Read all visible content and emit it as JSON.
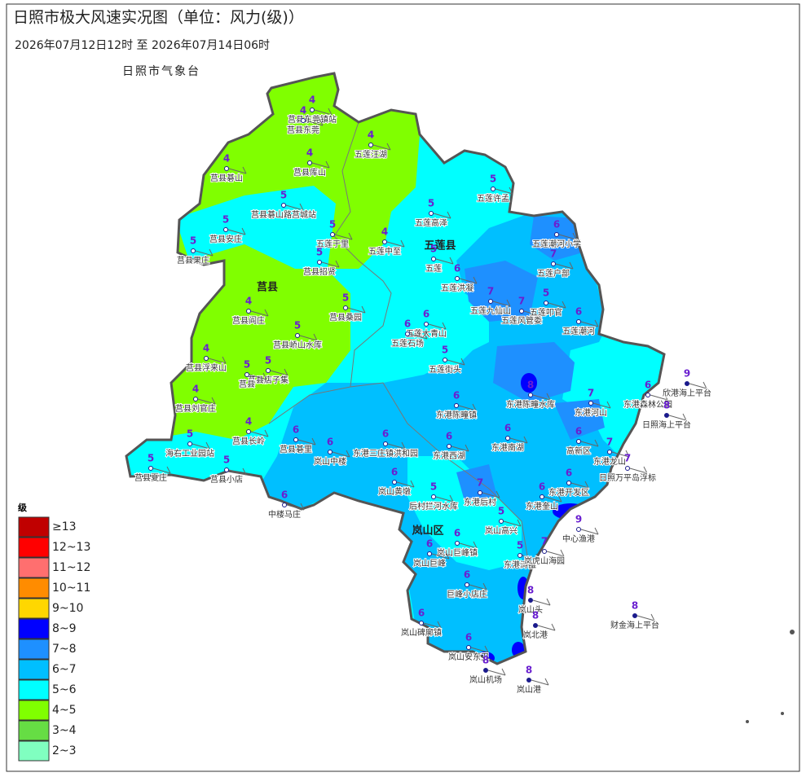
{
  "header": {
    "title": "日照市极大风速实况图（单位：风力(级)）",
    "subtitle": "2026年07月12日12时  至  2026年07月14日06时",
    "agency": "日照市气象台"
  },
  "districts": [
    "莒县",
    "五莲县",
    "岚山区"
  ],
  "legend": {
    "title": "级",
    "items": [
      {
        "label": "≥13",
        "color": "#c00000"
      },
      {
        "label": "12~13",
        "color": "#ff0000"
      },
      {
        "label": "11~12",
        "color": "#ff6f6f"
      },
      {
        "label": "10~11",
        "color": "#ff8c00"
      },
      {
        "label": "9~10",
        "color": "#ffd700"
      },
      {
        "label": "8~9",
        "color": "#0000ff"
      },
      {
        "label": "7~8",
        "color": "#1e90ff"
      },
      {
        "label": "6~7",
        "color": "#00bfff"
      },
      {
        "label": "5~6",
        "color": "#00ffff"
      },
      {
        "label": "4~5",
        "color": "#80ff00"
      },
      {
        "label": "3~4",
        "color": "#66dd44"
      },
      {
        "label": "2~3",
        "color": "#80ffc0"
      }
    ]
  },
  "stations": [
    {
      "name": "莒县东莞镇站",
      "level": 4
    },
    {
      "name": "莒县东莞",
      "level": 4
    },
    {
      "name": "五莲汪湖",
      "level": 4
    },
    {
      "name": "莒县碁山",
      "level": 4
    },
    {
      "name": "莒县库山",
      "level": 4
    },
    {
      "name": "五莲许孟",
      "level": 5
    },
    {
      "name": "莒县碁山路莒城站",
      "level": 5
    },
    {
      "name": "五莲高泽",
      "level": 5
    },
    {
      "name": "莒县安庄",
      "level": 5
    },
    {
      "name": "莒县果庄",
      "level": 5
    },
    {
      "name": "五莲于里",
      "level": 5
    },
    {
      "name": "五莲中至",
      "level": 4
    },
    {
      "name": "莒县招贤",
      "level": 5
    },
    {
      "name": "五莲",
      "level": 5
    },
    {
      "name": "五莲潮河小学",
      "level": 6
    },
    {
      "name": "五莲户部",
      "level": 7
    },
    {
      "name": "五莲洪凝",
      "level": 6
    },
    {
      "name": "莒县阎庄",
      "level": 4
    },
    {
      "name": "莒县桑园",
      "level": 5
    },
    {
      "name": "五莲九仙山",
      "level": 7
    },
    {
      "name": "五莲风管委",
      "level": 7
    },
    {
      "name": "五莲叩官",
      "level": 5
    },
    {
      "name": "五莲潮河",
      "level": 6
    },
    {
      "name": "五莲大青山",
      "level": 6
    },
    {
      "name": "五莲石场",
      "level": 6
    },
    {
      "name": "莒县峤山水库",
      "level": 5
    },
    {
      "name": "莒县浮来山",
      "level": 4
    },
    {
      "name": "莒县店子集",
      "level": 5
    },
    {
      "name": "莒县",
      "level": 5
    },
    {
      "name": "五莲街头",
      "level": 5
    },
    {
      "name": "东港陈疃水库",
      "level": 8
    },
    {
      "name": "东港河山",
      "level": 7
    },
    {
      "name": "东港森林公园",
      "level": 6
    },
    {
      "name": "欣港海上平台",
      "level": 9
    },
    {
      "name": "日照海上平台",
      "level": 8
    },
    {
      "name": "东港陈疃镇",
      "level": 6
    },
    {
      "name": "莒县刘官庄",
      "level": 4
    },
    {
      "name": "莒县长岭",
      "level": 4
    },
    {
      "name": "莒县夏庄",
      "level": 5
    },
    {
      "name": "海右工业园站",
      "level": 5
    },
    {
      "name": "莒县小店",
      "level": 5
    },
    {
      "name": "莒县碁里",
      "level": 6
    },
    {
      "name": "岚山中楼",
      "level": 6
    },
    {
      "name": "东港三庄镇洪和园",
      "level": 6
    },
    {
      "name": "东港西湖",
      "level": 6
    },
    {
      "name": "东港南湖",
      "level": 6
    },
    {
      "name": "高新区",
      "level": 6
    },
    {
      "name": "东港龙山",
      "level": 7
    },
    {
      "name": "日照万平岛浮标",
      "level": 7
    },
    {
      "name": "岚山黄墩",
      "level": 6
    },
    {
      "name": "中楼马庄",
      "level": 6
    },
    {
      "name": "后村拦河水库",
      "level": 5
    },
    {
      "name": "东港后村",
      "level": 7
    },
    {
      "name": "东港奎山",
      "level": 6
    },
    {
      "name": "东港开发区",
      "level": 6
    },
    {
      "name": "中心渔港",
      "level": 9
    },
    {
      "name": "岚山高兴",
      "level": 5
    },
    {
      "name": "岚山巨峰镇",
      "level": 6
    },
    {
      "name": "岚山巨峰",
      "level": 6
    },
    {
      "name": "东港涛雒",
      "level": 5
    },
    {
      "name": "岚虎山海园",
      "level": 7
    },
    {
      "name": "巨峰小店庄",
      "level": 6
    },
    {
      "name": "岚山碑廓镇",
      "level": 6
    },
    {
      "name": "岚山头",
      "level": 8
    },
    {
      "name": "岚北港",
      "level": 8
    },
    {
      "name": "财金海上平台",
      "level": 8
    },
    {
      "name": "岚山安东卫",
      "level": 6
    },
    {
      "name": "岚山机场",
      "level": 8
    },
    {
      "name": "岚山港",
      "level": 8
    }
  ]
}
